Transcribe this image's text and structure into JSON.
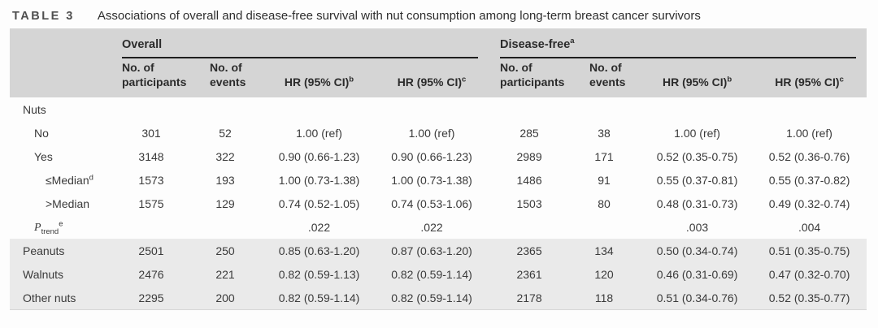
{
  "title": {
    "label": "TABLE 3",
    "text": "Associations of overall and disease-free survival with nut consumption among long-term breast cancer survivors"
  },
  "colors": {
    "header_bg": "#d5d5d5",
    "stripe_bg": "#eaeaea",
    "rule": "#1f1f1f"
  },
  "table": {
    "groups": [
      {
        "label": "Overall",
        "sup": ""
      },
      {
        "label": "Disease-free",
        "sup": "a"
      }
    ],
    "columns": [
      {
        "label": "No. of participants",
        "sup": ""
      },
      {
        "label": "No. of events",
        "sup": ""
      },
      {
        "label": "HR (95% CI)",
        "sup": "b"
      },
      {
        "label": "HR (95% CI)",
        "sup": "c"
      },
      {
        "label": "No. of participants",
        "sup": ""
      },
      {
        "label": "No. of events",
        "sup": ""
      },
      {
        "label": "HR (95% CI)",
        "sup": "b"
      },
      {
        "label": "HR (95% CI)",
        "sup": "c"
      }
    ],
    "rows": [
      {
        "label": {
          "text": "Nuts"
        },
        "indent": 0,
        "shaded": false,
        "cells": [
          "",
          "",
          "",
          "",
          "",
          "",
          "",
          ""
        ]
      },
      {
        "label": {
          "text": "No"
        },
        "indent": 1,
        "shaded": false,
        "cells": [
          "301",
          "52",
          "1.00 (ref)",
          "1.00 (ref)",
          "285",
          "38",
          "1.00 (ref)",
          "1.00 (ref)"
        ]
      },
      {
        "label": {
          "text": "Yes"
        },
        "indent": 1,
        "shaded": false,
        "cells": [
          "3148",
          "322",
          "0.90 (0.66-1.23)",
          "0.90 (0.66-1.23)",
          "2989",
          "171",
          "0.52 (0.35-0.75)",
          "0.52 (0.36-0.76)"
        ]
      },
      {
        "label": {
          "text": "≤Median",
          "sup": "d"
        },
        "indent": 2,
        "shaded": false,
        "cells": [
          "1573",
          "193",
          "1.00 (0.73-1.38)",
          "1.00 (0.73-1.38)",
          "1486",
          "91",
          "0.55 (0.37-0.81)",
          "0.55 (0.37-0.82)"
        ]
      },
      {
        "label": {
          "text": ">Median"
        },
        "indent": 2,
        "shaded": false,
        "cells": [
          "1575",
          "129",
          "0.74 (0.52-1.05)",
          "0.74 (0.53-1.06)",
          "1503",
          "80",
          "0.48 (0.31-0.73)",
          "0.49 (0.32-0.74)"
        ]
      },
      {
        "label": {
          "text": "P",
          "sub": "trend",
          "sup": "e",
          "italic": true
        },
        "indent": 1,
        "shaded": false,
        "cells": [
          "",
          "",
          ".022",
          ".022",
          "",
          "",
          ".003",
          ".004"
        ]
      },
      {
        "label": {
          "text": "Peanuts"
        },
        "indent": 0,
        "shaded": true,
        "cells": [
          "2501",
          "250",
          "0.85 (0.63-1.20)",
          "0.87 (0.63-1.20)",
          "2365",
          "134",
          "0.50 (0.34-0.74)",
          "0.51 (0.35-0.75)"
        ]
      },
      {
        "label": {
          "text": "Walnuts"
        },
        "indent": 0,
        "shaded": true,
        "cells": [
          "2476",
          "221",
          "0.82 (0.59-1.13)",
          "0.82 (0.59-1.14)",
          "2361",
          "120",
          "0.46 (0.31-0.69)",
          "0.47 (0.32-0.70)"
        ]
      },
      {
        "label": {
          "text": "Other nuts"
        },
        "indent": 0,
        "shaded": true,
        "cells": [
          "2295",
          "200",
          "0.82 (0.59-1.14)",
          "0.82 (0.59-1.14)",
          "2178",
          "118",
          "0.51 (0.34-0.76)",
          "0.52 (0.35-0.77)"
        ]
      }
    ]
  }
}
